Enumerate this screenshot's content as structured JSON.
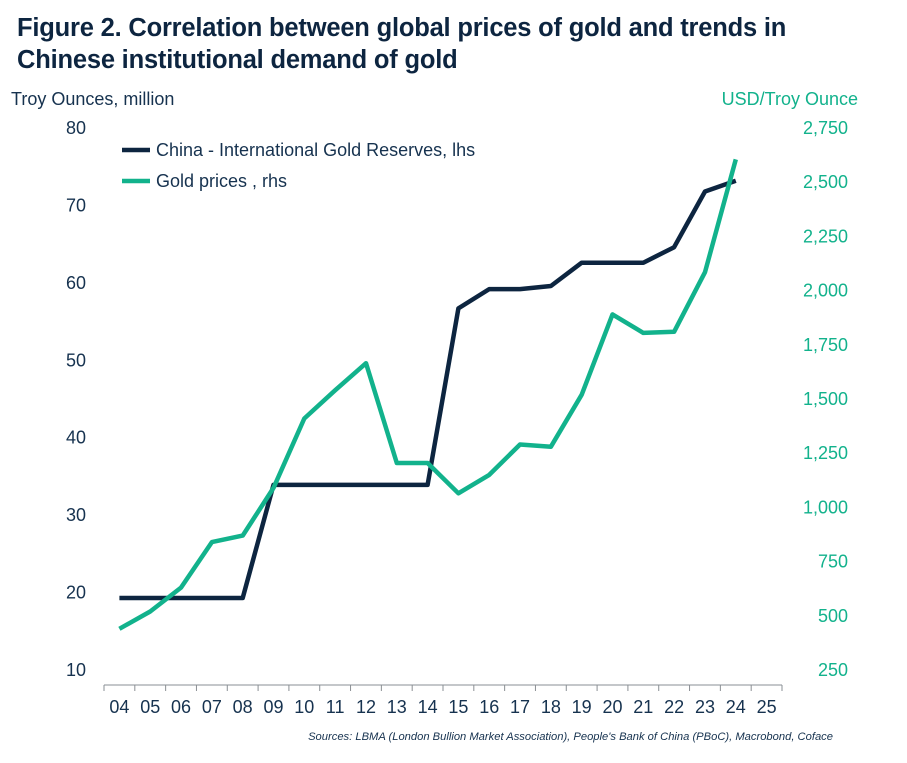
{
  "title_line1": "Figure 2. Correlation between global prices of gold and trends in",
  "title_line2": "Chinese institutional demand of gold",
  "sources": "Sources: LBMA (London Bullion Market Association), People's Bank of China (PBoC), Macrobond, Coface",
  "colors": {
    "reserves": "#0d2540",
    "gold": "#12b28c",
    "axis": "#16324f"
  },
  "chart_data": {
    "type": "line",
    "title": "Figure 2. Correlation between global prices of gold and trends in Chinese institutional demand of gold",
    "ylabel_left": "Troy Ounces, million",
    "ylabel_right": "USD/Troy Ounce",
    "categories": [
      "04",
      "05",
      "06",
      "07",
      "08",
      "09",
      "10",
      "11",
      "12",
      "13",
      "14",
      "15",
      "16",
      "17",
      "18",
      "19",
      "20",
      "21",
      "22",
      "23",
      "24",
      "25"
    ],
    "yticks_left": [
      "80",
      "70",
      "60",
      "50",
      "40",
      "30",
      "20",
      "10"
    ],
    "yticks_right": [
      "2,750",
      "2,500",
      "2,250",
      "2,000",
      "1,750",
      "1,500",
      "1,250",
      "1,000",
      "750",
      "500",
      "250"
    ],
    "ylim_left": [
      10,
      80
    ],
    "ylim_right": [
      250,
      2750
    ],
    "legend_position": "top-left",
    "grid": false,
    "series": [
      {
        "name": "China - International Gold Reserves, lhs",
        "axis": "left",
        "x": [
          "04",
          "05",
          "06",
          "07",
          "08",
          "09",
          "10",
          "11",
          "12",
          "13",
          "14",
          "15",
          "16",
          "17",
          "18",
          "19",
          "20",
          "21",
          "22",
          "23",
          "24"
        ],
        "values": [
          19.3,
          19.3,
          19.3,
          19.3,
          19.3,
          33.9,
          33.9,
          33.9,
          33.9,
          33.9,
          33.9,
          56.7,
          59.2,
          59.2,
          59.6,
          62.6,
          62.6,
          62.6,
          64.6,
          71.8,
          73.2
        ]
      },
      {
        "name": "Gold prices , rhs",
        "axis": "right",
        "x": [
          "04",
          "05",
          "06",
          "07",
          "08",
          "09",
          "10",
          "11",
          "12",
          "13",
          "14",
          "15",
          "16",
          "17",
          "18",
          "19",
          "20",
          "21",
          "22",
          "23",
          "24"
        ],
        "values": [
          440,
          520,
          630,
          840,
          870,
          1090,
          1410,
          1540,
          1665,
          1205,
          1205,
          1065,
          1150,
          1290,
          1280,
          1520,
          1890,
          1805,
          1810,
          2085,
          2605
        ]
      }
    ]
  }
}
